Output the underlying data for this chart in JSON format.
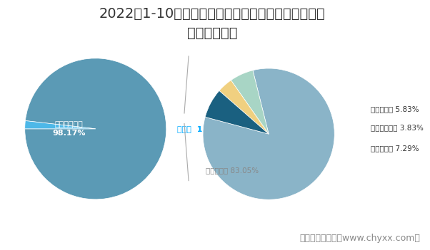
{
  "title": "2022年1-10月江西省发电量占全国比重及该地区各发\n电类型占比图",
  "left_pie": {
    "labels": [
      "全国其他省份\n98.17%",
      "江西省 1.83%"
    ],
    "values": [
      98.17,
      1.83
    ],
    "colors": [
      "#5b9ab5",
      "#4db8e8"
    ],
    "label_colors": [
      "#ffffff",
      "#00aaff"
    ]
  },
  "right_pie": {
    "labels": [
      "火力发电量 83.05%",
      "水力发电量 5.83%",
      "太阳能发电量 3.83%",
      "风力发电量 7.29%"
    ],
    "values": [
      83.05,
      5.83,
      3.83,
      7.29
    ],
    "colors": [
      "#8ab4c8",
      "#a8d5c5",
      "#f0d080",
      "#1a6080"
    ],
    "label_colors": [
      "#888888",
      "#333333",
      "#333333",
      "#333333"
    ]
  },
  "footer": "制图：智研咨询（www.chyxx.com）",
  "background_color": "#ffffff",
  "title_fontsize": 14,
  "footer_fontsize": 9
}
